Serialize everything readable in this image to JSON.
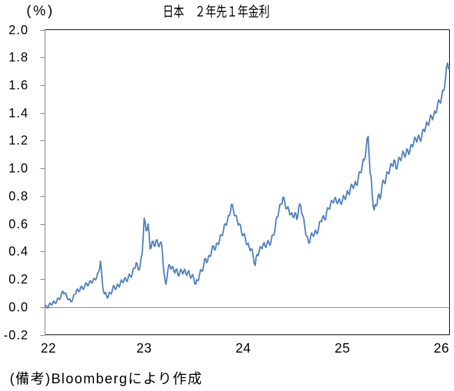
{
  "chart_data": {
    "type": "line",
    "title": "日本　２年先１年金利",
    "ylabel": "(%)",
    "note": "(備考)Bloombergにより作成",
    "x_tick_labels": [
      "22",
      "23",
      "24",
      "25",
      "26"
    ],
    "x_ticks": [
      22,
      23,
      24,
      25,
      26
    ],
    "y_tick_labels": [
      "2.0",
      "1.8",
      "1.6",
      "1.4",
      "1.2",
      "1.0",
      "0.8",
      "0.6",
      "0.4",
      "0.2",
      "0.0",
      "-0.2"
    ],
    "y_ticks": [
      2.0,
      1.8,
      1.6,
      1.4,
      1.2,
      1.0,
      0.8,
      0.6,
      0.4,
      0.2,
      0.0,
      -0.2
    ],
    "ylim": [
      -0.2,
      2.0
    ],
    "xlim": [
      22,
      26.08
    ],
    "grid": "zero-line-only",
    "legend": "none",
    "line_color": "#4f81bd",
    "axis_color": "#7f7f7f",
    "border_color": "#000000",
    "series": [
      {
        "name": "日本 2年先1年金利",
        "x_start": 22.0,
        "x_step": 0.01,
        "values": [
          0.005,
          0.012,
          -0.005,
          -0.007,
          0.015,
          0.03,
          0.02,
          0.015,
          0.035,
          0.044,
          0.028,
          0.026,
          0.048,
          0.066,
          0.06,
          0.055,
          0.075,
          0.107,
          0.115,
          0.095,
          0.1,
          0.1,
          0.075,
          0.053,
          0.055,
          0.06,
          0.04,
          0.038,
          0.06,
          0.087,
          0.09,
          0.096,
          0.125,
          0.13,
          0.11,
          0.116,
          0.145,
          0.15,
          0.13,
          0.128,
          0.15,
          0.173,
          0.172,
          0.153,
          0.158,
          0.186,
          0.19,
          0.172,
          0.178,
          0.204,
          0.205,
          0.196,
          0.21,
          0.242,
          0.25,
          0.278,
          0.33,
          0.263,
          0.16,
          0.11,
          0.095,
          0.108,
          0.085,
          0.064,
          0.078,
          0.107,
          0.1,
          0.095,
          0.125,
          0.155,
          0.148,
          0.125,
          0.138,
          0.165,
          0.155,
          0.145,
          0.17,
          0.196,
          0.185,
          0.175,
          0.2,
          0.213,
          0.19,
          0.185,
          0.215,
          0.238,
          0.225,
          0.215,
          0.24,
          0.278,
          0.28,
          0.282,
          0.32,
          0.313,
          0.27,
          0.267,
          0.3,
          0.358,
          0.38,
          0.492,
          0.64,
          0.615,
          0.55,
          0.555,
          0.6,
          0.53,
          0.42,
          0.425,
          0.47,
          0.475,
          0.44,
          0.44,
          0.48,
          0.485,
          0.45,
          0.435,
          0.46,
          0.47,
          0.44,
          0.325,
          0.25,
          0.195,
          0.165,
          0.21,
          0.27,
          0.305,
          0.3,
          0.273,
          0.285,
          0.293,
          0.26,
          0.245,
          0.27,
          0.273,
          0.235,
          0.223,
          0.25,
          0.273,
          0.255,
          0.238,
          0.26,
          0.273,
          0.245,
          0.228,
          0.25,
          0.263,
          0.235,
          0.208,
          0.22,
          0.235,
          0.21,
          0.168,
          0.165,
          0.198,
          0.19,
          0.195,
          0.24,
          0.27,
          0.26,
          0.26,
          0.3,
          0.345,
          0.35,
          0.32,
          0.33,
          0.37,
          0.37,
          0.365,
          0.4,
          0.44,
          0.44,
          0.41,
          0.42,
          0.46,
          0.46,
          0.45,
          0.48,
          0.52,
          0.52,
          0.515,
          0.55,
          0.595,
          0.6,
          0.59,
          0.62,
          0.66,
          0.66,
          0.68,
          0.74,
          0.74,
          0.7,
          0.66,
          0.66,
          0.66,
          0.62,
          0.59,
          0.6,
          0.595,
          0.55,
          0.515,
          0.52,
          0.53,
          0.5,
          0.455,
          0.45,
          0.46,
          0.43,
          0.405,
          0.42,
          0.415,
          0.37,
          0.315,
          0.3,
          0.36,
          0.38,
          0.37,
          0.4,
          0.435,
          0.43,
          0.42,
          0.45,
          0.465,
          0.44,
          0.43,
          0.46,
          0.48,
          0.46,
          0.445,
          0.47,
          0.515,
          0.52,
          0.52,
          0.56,
          0.625,
          0.65,
          0.655,
          0.7,
          0.74,
          0.74,
          0.745,
          0.79,
          0.79,
          0.75,
          0.71,
          0.71,
          0.725,
          0.7,
          0.665,
          0.67,
          0.68,
          0.65,
          0.645,
          0.68,
          0.675,
          0.63,
          0.655,
          0.72,
          0.745,
          0.73,
          0.675,
          0.66,
          0.64,
          0.58,
          0.525,
          0.51,
          0.505,
          0.46,
          0.465,
          0.51,
          0.535,
          0.52,
          0.51,
          0.54,
          0.555,
          0.53,
          0.53,
          0.57,
          0.615,
          0.62,
          0.615,
          0.65,
          0.66,
          0.63,
          0.63,
          0.68,
          0.715,
          0.71,
          0.705,
          0.74,
          0.77,
          0.76,
          0.75,
          0.78,
          0.79,
          0.76,
          0.745,
          0.77,
          0.78,
          0.75,
          0.74,
          0.77,
          0.805,
          0.79,
          0.775,
          0.81,
          0.84,
          0.82,
          0.81,
          0.85,
          0.885,
          0.875,
          0.855,
          0.88,
          0.905,
          0.88,
          0.88,
          0.93,
          0.975,
          0.97,
          0.97,
          1.02,
          1.065,
          1.06,
          1.08,
          1.15,
          1.215,
          1.23,
          1.08,
          0.96,
          0.94,
          0.82,
          0.73,
          0.7,
          0.74,
          0.73,
          0.74,
          0.8,
          0.815,
          0.78,
          0.805,
          0.88,
          0.915,
          0.9,
          0.89,
          0.93,
          0.975,
          0.97,
          0.96,
          1.0,
          1.035,
          1.02,
          1.015,
          1.06,
          1.055,
          1.0,
          0.995,
          1.04,
          1.08,
          1.07,
          1.055,
          1.09,
          1.125,
          1.11,
          1.08,
          1.1,
          1.14,
          1.13,
          1.1,
          1.12,
          1.17,
          1.17,
          1.155,
          1.19,
          1.225,
          1.21,
          1.19,
          1.22,
          1.24,
          1.21,
          1.195,
          1.23,
          1.28,
          1.28,
          1.265,
          1.3,
          1.335,
          1.32,
          1.31,
          1.35,
          1.385,
          1.37,
          1.35,
          1.38,
          1.415,
          1.4,
          1.405,
          1.46,
          1.495,
          1.48,
          1.47,
          1.51,
          1.56,
          1.56,
          1.58,
          1.65,
          1.73,
          1.76,
          1.72,
          1.73
        ]
      }
    ]
  }
}
